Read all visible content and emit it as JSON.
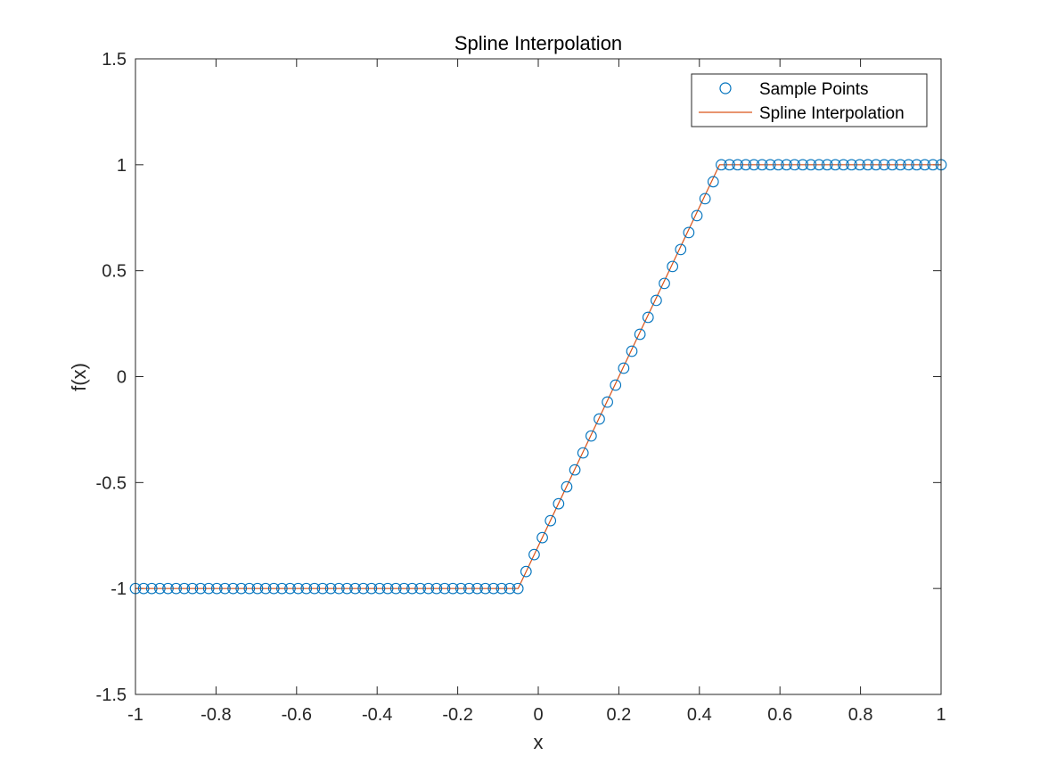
{
  "chart_data": {
    "type": "line",
    "title": "Spline Interpolation",
    "xlabel": "x",
    "ylabel": "f(x)",
    "xlim": [
      -1,
      1
    ],
    "ylim": [
      -1.5,
      1.5
    ],
    "xticks": [
      -1,
      -0.8,
      -0.6,
      -0.4,
      -0.2,
      0,
      0.2,
      0.4,
      0.6,
      0.8,
      1
    ],
    "xtick_labels": [
      "-1",
      "-0.8",
      "-0.6",
      "-0.4",
      "-0.2",
      "0",
      "0.2",
      "0.4",
      "0.6",
      "0.8",
      "1"
    ],
    "yticks": [
      -1.5,
      -1,
      -0.5,
      0,
      0.5,
      1,
      1.5
    ],
    "ytick_labels": [
      "-1.5",
      "-1",
      "-0.5",
      "0",
      "0.5",
      "1",
      "1.5"
    ],
    "grid": false,
    "legend_position": "top-right",
    "series": [
      {
        "name": "Sample Points",
        "style": "markers",
        "marker": "circle",
        "color": "#0072BD",
        "x": [
          -1.0,
          -0.9798,
          -0.9596,
          -0.9394,
          -0.9192,
          -0.899,
          -0.8788,
          -0.8586,
          -0.8384,
          -0.8182,
          -0.798,
          -0.7778,
          -0.7576,
          -0.7374,
          -0.7172,
          -0.697,
          -0.6768,
          -0.6566,
          -0.6364,
          -0.6162,
          -0.596,
          -0.5758,
          -0.5556,
          -0.5354,
          -0.5152,
          -0.4949,
          -0.4747,
          -0.4545,
          -0.4343,
          -0.4141,
          -0.3939,
          -0.3737,
          -0.3535,
          -0.3333,
          -0.3131,
          -0.2929,
          -0.2727,
          -0.2525,
          -0.2323,
          -0.2121,
          -0.1919,
          -0.1717,
          -0.1515,
          -0.1313,
          -0.1111,
          -0.0909,
          -0.0707,
          -0.0505,
          -0.0303,
          -0.0101,
          0.0101,
          0.0303,
          0.0505,
          0.0707,
          0.0909,
          0.1111,
          0.1313,
          0.1515,
          0.1717,
          0.1919,
          0.2121,
          0.2323,
          0.2525,
          0.2727,
          0.2929,
          0.3131,
          0.3333,
          0.3535,
          0.3737,
          0.3939,
          0.4141,
          0.4343,
          0.4545,
          0.4747,
          0.4949,
          0.5152,
          0.5354,
          0.5556,
          0.5758,
          0.596,
          0.6162,
          0.6364,
          0.6566,
          0.6768,
          0.697,
          0.7172,
          0.7374,
          0.7576,
          0.7778,
          0.798,
          0.8182,
          0.8384,
          0.8586,
          0.8788,
          0.899,
          0.9192,
          0.9394,
          0.9596,
          0.9798,
          1.0
        ],
        "y": [
          -1,
          -1,
          -1,
          -1,
          -1,
          -1,
          -1,
          -1,
          -1,
          -1,
          -1,
          -1,
          -1,
          -1,
          -1,
          -1,
          -1,
          -1,
          -1,
          -1,
          -1,
          -1,
          -1,
          -1,
          -1,
          -1,
          -1,
          -1,
          -1,
          -1,
          -1,
          -1,
          -1,
          -1,
          -1,
          -1,
          -1,
          -1,
          -1,
          -1,
          -1,
          -1,
          -1,
          -1,
          -1,
          -1,
          -1,
          -1,
          -0.92,
          -0.84,
          -0.76,
          -0.68,
          -0.6,
          -0.52,
          -0.44,
          -0.36,
          -0.28,
          -0.2,
          -0.12,
          -0.04,
          0.04,
          0.12,
          0.2,
          0.28,
          0.36,
          0.44,
          0.52,
          0.6,
          0.68,
          0.76,
          0.84,
          0.92,
          1,
          1,
          1,
          1,
          1,
          1,
          1,
          1,
          1,
          1,
          1,
          1,
          1,
          1,
          1,
          1,
          1,
          1,
          1,
          1,
          1,
          1,
          1,
          1,
          1,
          1,
          1,
          1
        ]
      },
      {
        "name": "Spline Interpolation",
        "style": "line",
        "color": "#D95319",
        "x": [
          -1.0,
          -0.05,
          0.45,
          1.0
        ],
        "y": [
          -1,
          -1,
          1,
          1
        ]
      }
    ]
  }
}
